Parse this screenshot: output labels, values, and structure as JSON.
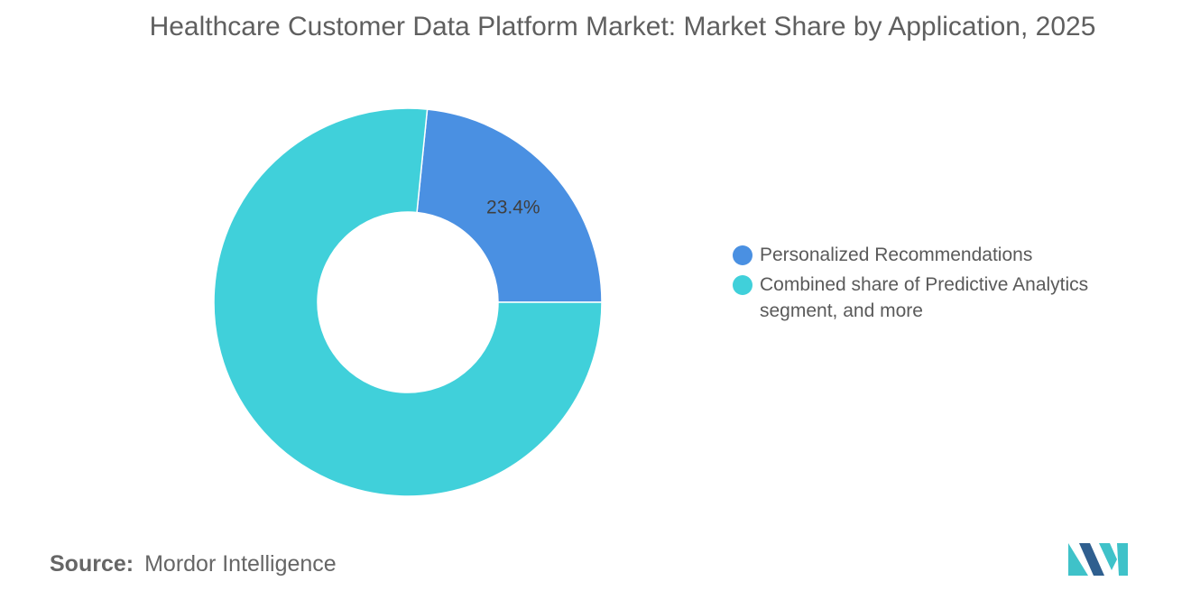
{
  "title": "Healthcare Customer Data Platform Market: Market Share by Application, 2025",
  "chart_data": {
    "type": "pie",
    "donut": true,
    "categories": [
      "Personalized Recommendations",
      "Combined share of Predictive Analytics segment, and more"
    ],
    "values": [
      23.4,
      76.6
    ],
    "data_labels": [
      "23.4%",
      ""
    ],
    "colors": [
      "#4a90e2",
      "#40d0da"
    ],
    "legend_position": "right"
  },
  "source": {
    "label": "Source:",
    "value": "Mordor Intelligence"
  },
  "logo": {
    "icon": "mordor-intelligence-logo-icon",
    "colors": [
      "#3fc2c9",
      "#2f5f8f"
    ]
  }
}
